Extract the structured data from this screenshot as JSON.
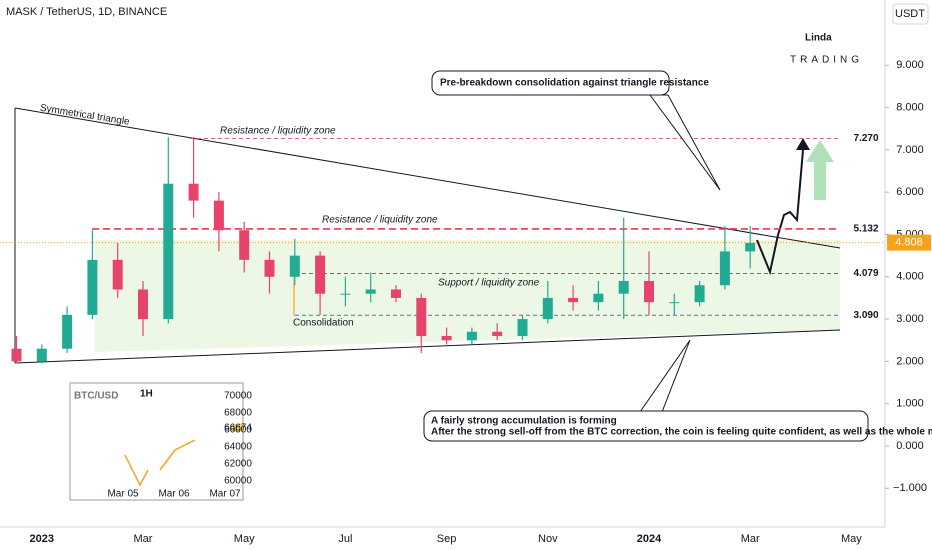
{
  "chart_data": {
    "type": "candlestick",
    "title": "MASK / TetherUS, 1D, BINANCE",
    "currency": "USDT",
    "categories": [
      null,
      "2023",
      null,
      null,
      null,
      "Mar",
      null,
      null,
      null,
      "May",
      null,
      null,
      null,
      "Jul",
      null,
      null,
      null,
      "Sep",
      null,
      null,
      null,
      "Nov",
      null,
      null,
      null,
      "2024",
      null,
      null,
      null,
      "Mar",
      null,
      null,
      null,
      "May",
      null
    ],
    "open": [
      2.3,
      2.0,
      2.3,
      3.1,
      4.4,
      3.7,
      3.0,
      6.2,
      5.8,
      5.1,
      4.4,
      4.0,
      4.5,
      3.6,
      3.6,
      3.7,
      3.5,
      2.6,
      2.5,
      2.7,
      2.6,
      3.0,
      3.5,
      3.4,
      3.6,
      3.9,
      3.4,
      3.4,
      3.8,
      4.6,
      null,
      null,
      null,
      null,
      null
    ],
    "high": [
      2.6,
      2.4,
      3.3,
      5.1,
      4.8,
      3.9,
      7.3,
      7.3,
      6.0,
      5.3,
      4.6,
      4.9,
      4.6,
      4.0,
      4.1,
      3.8,
      3.6,
      2.8,
      2.8,
      2.9,
      3.1,
      3.9,
      3.8,
      3.9,
      5.4,
      4.6,
      3.6,
      3.9,
      5.2,
      5.2,
      null,
      null,
      null,
      null,
      null
    ],
    "low": [
      1.95,
      1.95,
      2.2,
      3.0,
      3.5,
      2.6,
      2.9,
      5.4,
      4.6,
      4.1,
      3.6,
      3.8,
      3.1,
      3.3,
      3.4,
      3.4,
      2.2,
      2.4,
      2.4,
      2.5,
      2.5,
      2.9,
      3.2,
      3.2,
      3.0,
      3.1,
      3.1,
      3.3,
      3.7,
      4.2,
      null,
      null,
      null,
      null,
      null
    ],
    "close": [
      2.0,
      2.3,
      3.1,
      4.4,
      3.7,
      3.0,
      6.2,
      5.8,
      5.1,
      4.4,
      4.0,
      4.5,
      3.6,
      3.6,
      3.7,
      3.5,
      2.6,
      2.5,
      2.7,
      2.6,
      3.0,
      3.5,
      3.4,
      3.6,
      3.9,
      3.4,
      3.4,
      3.8,
      4.6,
      4.8,
      null,
      null,
      null,
      null,
      null
    ],
    "up_color": "#22ab94",
    "down_color": "#e6446a",
    "ylim": [
      -1.87,
      10.54
    ],
    "yticks": [
      {
        "value": 9,
        "label": "9.000"
      },
      {
        "value": 8,
        "label": "8.000"
      },
      {
        "value": 7,
        "label": "7.000"
      },
      {
        "value": 6,
        "label": "6.000"
      },
      {
        "value": 5,
        "label": "5.000"
      },
      {
        "value": 4,
        "label": "4.000"
      },
      {
        "value": 3,
        "label": "3.000"
      },
      {
        "value": 2,
        "label": "2.000"
      },
      {
        "value": 1,
        "label": "1.000"
      },
      {
        "value": 0,
        "label": "0.000"
      },
      {
        "value": -1,
        "label": "−1.000"
      }
    ],
    "levels": [
      {
        "value": 7.27,
        "label": "7.270",
        "color": "#e0607e"
      },
      {
        "value": 5.132,
        "label": "5.132",
        "color": "#f23645"
      },
      {
        "value": 4.079,
        "label": "4.079",
        "color": "#4a6fd4"
      },
      {
        "value": 3.09,
        "label": "3.090",
        "color": "#4a6fd4"
      }
    ],
    "current_price": {
      "value": 4.808,
      "label": "4.808",
      "color": "#f7a21b"
    },
    "annotations": [
      "Symmetrical triangle",
      "Resistance / liquidity zone",
      "Resistance / liquidity zone",
      "Support / liquidity zone",
      "Consolidation"
    ],
    "callouts": [
      "Pre-breakdown consolidation against triangle resistance",
      "A fairly strong accumulation is forming",
      "After the strong sell-off from the BTC correction, the coin is feeling quite confident, as well as the whole market"
    ],
    "inset": {
      "title": "BTC/USD",
      "interval": "1H",
      "price": "66674",
      "yticks": [
        "70000",
        "68000",
        "66000",
        "64000",
        "62000",
        "60000"
      ],
      "dates": [
        "Mar 05",
        "Mar 06",
        "Mar 07"
      ]
    },
    "logo": {
      "name": "Linda",
      "sub": "TRADING"
    }
  }
}
